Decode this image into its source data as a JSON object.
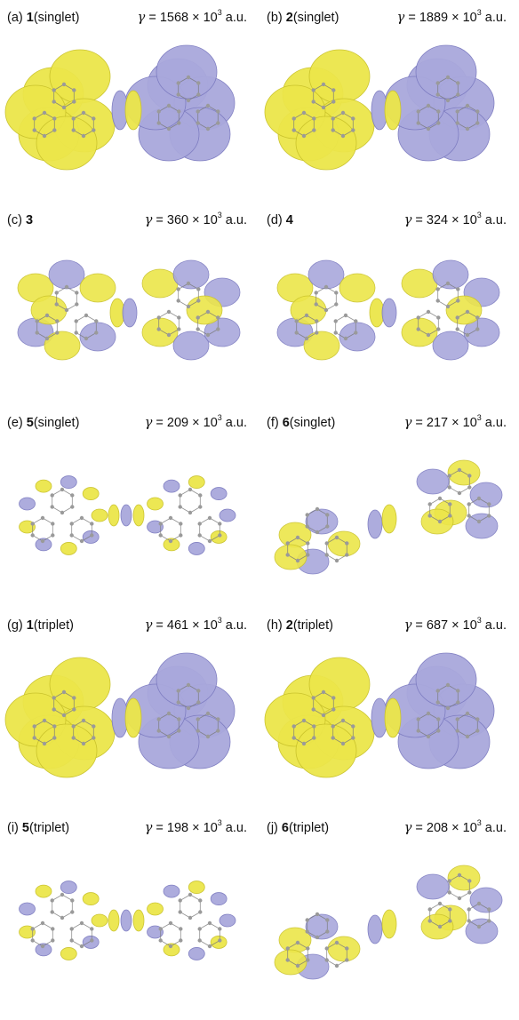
{
  "colors": {
    "positive": "#ece64a",
    "positive_edge": "#c9c22a",
    "negative": "#a9a8dc",
    "negative_edge": "#7c7bc0",
    "atom": "#9a9a9a"
  },
  "panels": [
    {
      "label": "(a)",
      "compound": "1",
      "state": "(singlet)",
      "gamma_symbol": "γ",
      "gamma_value": "= 1568 × 10",
      "gamma_exp": "3",
      "gamma_unit": " a.u.",
      "pattern": "bulk-split"
    },
    {
      "label": "(b)",
      "compound": "2",
      "state": "(singlet)",
      "gamma_symbol": "γ",
      "gamma_value": "= 1889 × 10",
      "gamma_exp": "3",
      "gamma_unit": " a.u.",
      "pattern": "bulk-split"
    },
    {
      "label": "(c)",
      "compound": "3",
      "state": "",
      "gamma_symbol": "γ",
      "gamma_value": "= 360 × 10",
      "gamma_exp": "3",
      "gamma_unit": " a.u.",
      "pattern": "lobes-mixed"
    },
    {
      "label": "(d)",
      "compound": "4",
      "state": "",
      "gamma_symbol": "γ",
      "gamma_value": "= 324 × 10",
      "gamma_exp": "3",
      "gamma_unit": " a.u.",
      "pattern": "lobes-mixed"
    },
    {
      "label": "(e)",
      "compound": "5",
      "state": "(singlet)",
      "gamma_symbol": "γ",
      "gamma_value": "= 209 × 10",
      "gamma_exp": "3",
      "gamma_unit": " a.u.",
      "pattern": "small-lobes"
    },
    {
      "label": "(f)",
      "compound": "6",
      "state": "(singlet)",
      "gamma_symbol": "γ",
      "gamma_value": "= 217 × 10",
      "gamma_exp": "3",
      "gamma_unit": " a.u.",
      "pattern": "twisted"
    },
    {
      "label": "(g)",
      "compound": "1",
      "state": "(triplet)",
      "gamma_symbol": "γ",
      "gamma_value": "= 461 × 10",
      "gamma_exp": "3",
      "gamma_unit": " a.u.",
      "pattern": "bulk-split"
    },
    {
      "label": "(h)",
      "compound": "2",
      "state": "(triplet)",
      "gamma_symbol": "γ",
      "gamma_value": "= 687 × 10",
      "gamma_exp": "3",
      "gamma_unit": " a.u.",
      "pattern": "bulk-split"
    },
    {
      "label": "(i)",
      "compound": "5",
      "state": "(triplet)",
      "gamma_symbol": "γ",
      "gamma_value": "= 198 × 10",
      "gamma_exp": "3",
      "gamma_unit": " a.u.",
      "pattern": "small-lobes"
    },
    {
      "label": "(j)",
      "compound": "6",
      "state": "(triplet)",
      "gamma_symbol": "γ",
      "gamma_value": "= 208 × 10",
      "gamma_exp": "3",
      "gamma_unit": " a.u.",
      "pattern": "twisted"
    }
  ]
}
